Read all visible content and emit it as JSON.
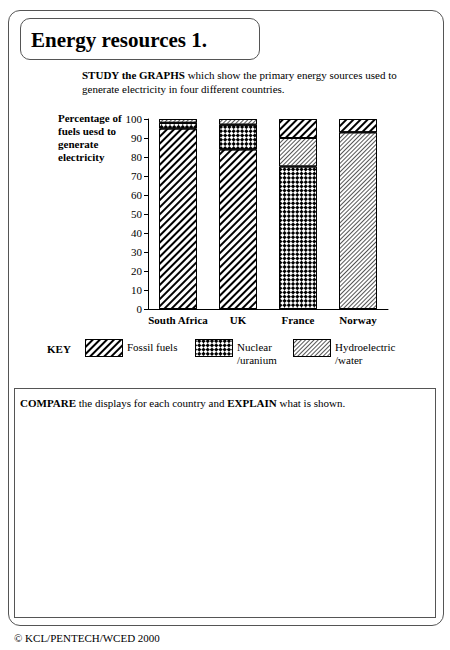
{
  "title": "Energy resources  1.",
  "instruction": [
    {
      "text": "STUDY the GRAPHS",
      "bold": true
    },
    {
      "text": " which show the primary energy sources used to generate electricity in four different countries.",
      "bold": false
    }
  ],
  "key_label": "KEY",
  "task": [
    {
      "text": "COMPARE",
      "bold": true
    },
    {
      "text": " the displays for each country and ",
      "bold": false
    },
    {
      "text": "EXPLAIN",
      "bold": true
    },
    {
      "text": " what is shown.",
      "bold": false
    }
  ],
  "copyright": "© KCL/PENTECH/WCED 2000",
  "chart_data": {
    "type": "bar",
    "stacked": true,
    "grid": false,
    "y_label": "Percentage of fuels uesd to generate electricity",
    "categories": [
      "South Africa",
      "UK",
      "France",
      "Norway"
    ],
    "series": [
      {
        "name": "Fossil fuels",
        "color": "#000000",
        "values": [
          95,
          84,
          null,
          null
        ]
      },
      {
        "name": "Nuclear /uranium",
        "color": "#000000",
        "values": [
          3,
          13,
          75,
          null
        ]
      },
      {
        "name": "Hydroelectric /water",
        "color": "#555555",
        "values": [
          2,
          3,
          15,
          93
        ]
      },
      {
        "name": "Fossil fuels",
        "color": "#000000",
        "values": [
          null,
          null,
          10,
          7
        ]
      }
    ],
    "ylim": [
      0,
      100
    ],
    "yticks": [
      0,
      10,
      20,
      30,
      40,
      50,
      60,
      70,
      80,
      90,
      100
    ]
  }
}
